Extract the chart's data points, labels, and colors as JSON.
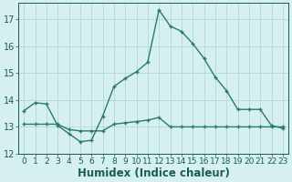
{
  "xlabel": "Humidex (Indice chaleur)",
  "background_color": "#d6f0f0",
  "grid_color": "#b8dada",
  "line_color": "#2a7a6e",
  "xlim": [
    -0.5,
    23.5
  ],
  "ylim": [
    12,
    17.6
  ],
  "yticks": [
    12,
    13,
    14,
    15,
    16,
    17
  ],
  "xticks": [
    0,
    1,
    2,
    3,
    4,
    5,
    6,
    7,
    8,
    9,
    10,
    11,
    12,
    13,
    14,
    15,
    16,
    17,
    18,
    19,
    20,
    21,
    22,
    23
  ],
  "series1_x": [
    0,
    1,
    2,
    3,
    4,
    5,
    6,
    7,
    8,
    9,
    10,
    11,
    12,
    13,
    14,
    15,
    16,
    17,
    18,
    19,
    20,
    21,
    22,
    23
  ],
  "series1_y": [
    13.6,
    13.9,
    13.85,
    13.05,
    12.75,
    12.45,
    12.5,
    13.4,
    14.5,
    14.8,
    15.05,
    15.4,
    17.35,
    16.75,
    16.55,
    16.1,
    15.55,
    14.85,
    14.35,
    13.65,
    13.65,
    13.65,
    13.05,
    12.95
  ],
  "series2_x": [
    0,
    1,
    2,
    3,
    4,
    5,
    6,
    7,
    8,
    9,
    10,
    11,
    12,
    13,
    14,
    15,
    16,
    17,
    18,
    19,
    20,
    21,
    22,
    23
  ],
  "series2_y": [
    13.1,
    13.1,
    13.1,
    13.1,
    12.9,
    12.85,
    12.85,
    12.85,
    13.1,
    13.15,
    13.2,
    13.25,
    13.35,
    13.0,
    13.0,
    13.0,
    13.0,
    13.0,
    13.0,
    13.0,
    13.0,
    13.0,
    13.0,
    13.0
  ],
  "font_color": "#1a5a5a",
  "tick_labelsize": 6.5,
  "xlabel_fontsize": 8.5
}
